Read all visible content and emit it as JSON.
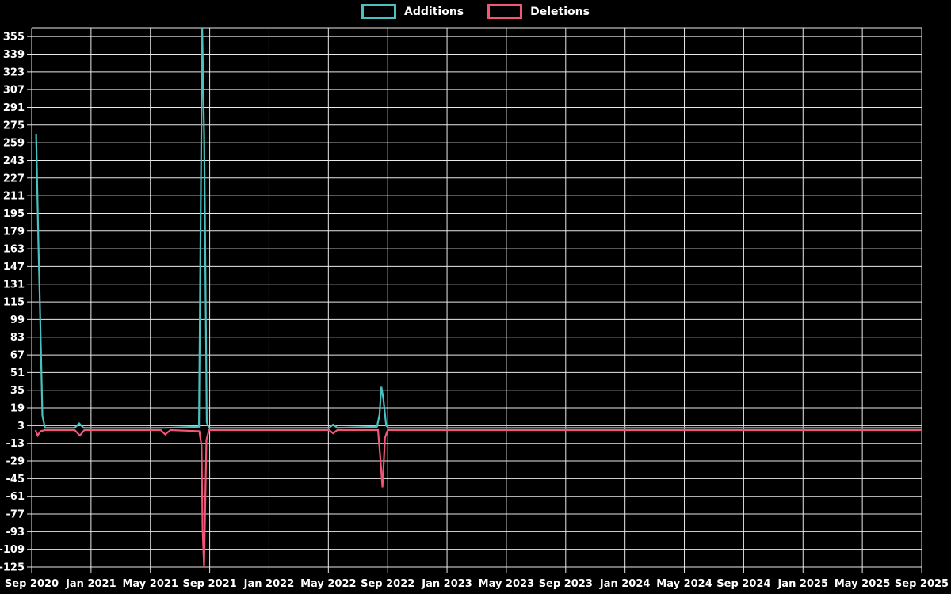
{
  "app": {
    "background": "#000000"
  },
  "chart_data": {
    "type": "line",
    "title": "",
    "legend_position": "top",
    "grid": true,
    "background": "#000000",
    "grid_color": "#e9e9e9",
    "text_color": "#ffffff",
    "x_axis": {
      "unit": "months since Sep 2020",
      "min_month": 0,
      "max_month": 60,
      "tick_step_months": 4,
      "tick_labels": [
        "Sep 2020",
        "Jan 2021",
        "May 2021",
        "Sep 2021",
        "Jan 2022",
        "May 2022",
        "Sep 2022",
        "Jan 2023",
        "May 2023",
        "Sep 2023",
        "Jan 2024",
        "May 2024",
        "Sep 2024",
        "Jan 2025",
        "May 2025",
        "Sep 2025"
      ]
    },
    "y_axis": {
      "min": -125,
      "max": 363,
      "tick_step": 16,
      "tick_values": [
        355,
        339,
        323,
        307,
        291,
        275,
        259,
        243,
        227,
        211,
        195,
        179,
        163,
        147,
        131,
        115,
        99,
        83,
        67,
        51,
        35,
        19,
        3,
        -13,
        -29,
        -45,
        -61,
        -77,
        -93,
        -109,
        -125
      ]
    },
    "series": [
      {
        "name": "Additions",
        "color": "#4bc0c0",
        "points": [
          [
            0.3,
            267
          ],
          [
            0.45,
            170
          ],
          [
            0.55,
            114
          ],
          [
            0.72,
            12
          ],
          [
            0.9,
            1
          ],
          [
            2.9,
            1
          ],
          [
            3.2,
            5
          ],
          [
            3.5,
            1
          ],
          [
            8.6,
            1
          ],
          [
            9.0,
            1
          ],
          [
            11.28,
            2
          ],
          [
            11.49,
            363
          ],
          [
            11.63,
            260
          ],
          [
            11.8,
            6
          ],
          [
            11.95,
            1
          ],
          [
            15,
            1
          ],
          [
            19.5,
            1
          ],
          [
            20.05,
            1
          ],
          [
            20.32,
            4
          ],
          [
            20.6,
            1
          ],
          [
            23.28,
            2
          ],
          [
            23.45,
            13
          ],
          [
            23.57,
            38
          ],
          [
            23.7,
            28
          ],
          [
            23.9,
            3
          ],
          [
            24.05,
            1
          ],
          [
            30,
            1
          ],
          [
            45,
            1
          ],
          [
            60,
            1
          ]
        ]
      },
      {
        "name": "Deletions",
        "color": "#f25676",
        "points": [
          [
            0.25,
            -1
          ],
          [
            0.4,
            -6
          ],
          [
            0.6,
            -2
          ],
          [
            0.9,
            -1
          ],
          [
            2.9,
            -1
          ],
          [
            3.25,
            -6
          ],
          [
            3.55,
            -1
          ],
          [
            8.7,
            -1
          ],
          [
            9.0,
            -5
          ],
          [
            9.35,
            -1
          ],
          [
            11.3,
            -2
          ],
          [
            11.45,
            -15
          ],
          [
            11.52,
            -90
          ],
          [
            11.62,
            -125
          ],
          [
            11.78,
            -10
          ],
          [
            11.95,
            -1
          ],
          [
            15,
            -1
          ],
          [
            19.5,
            -1
          ],
          [
            20.05,
            -1
          ],
          [
            20.32,
            -4
          ],
          [
            20.6,
            -1
          ],
          [
            23.35,
            -1
          ],
          [
            23.52,
            -29
          ],
          [
            23.65,
            -53
          ],
          [
            23.82,
            -8
          ],
          [
            24.0,
            -1
          ],
          [
            30,
            -1
          ],
          [
            45,
            -1
          ],
          [
            60,
            -1
          ]
        ]
      }
    ]
  }
}
